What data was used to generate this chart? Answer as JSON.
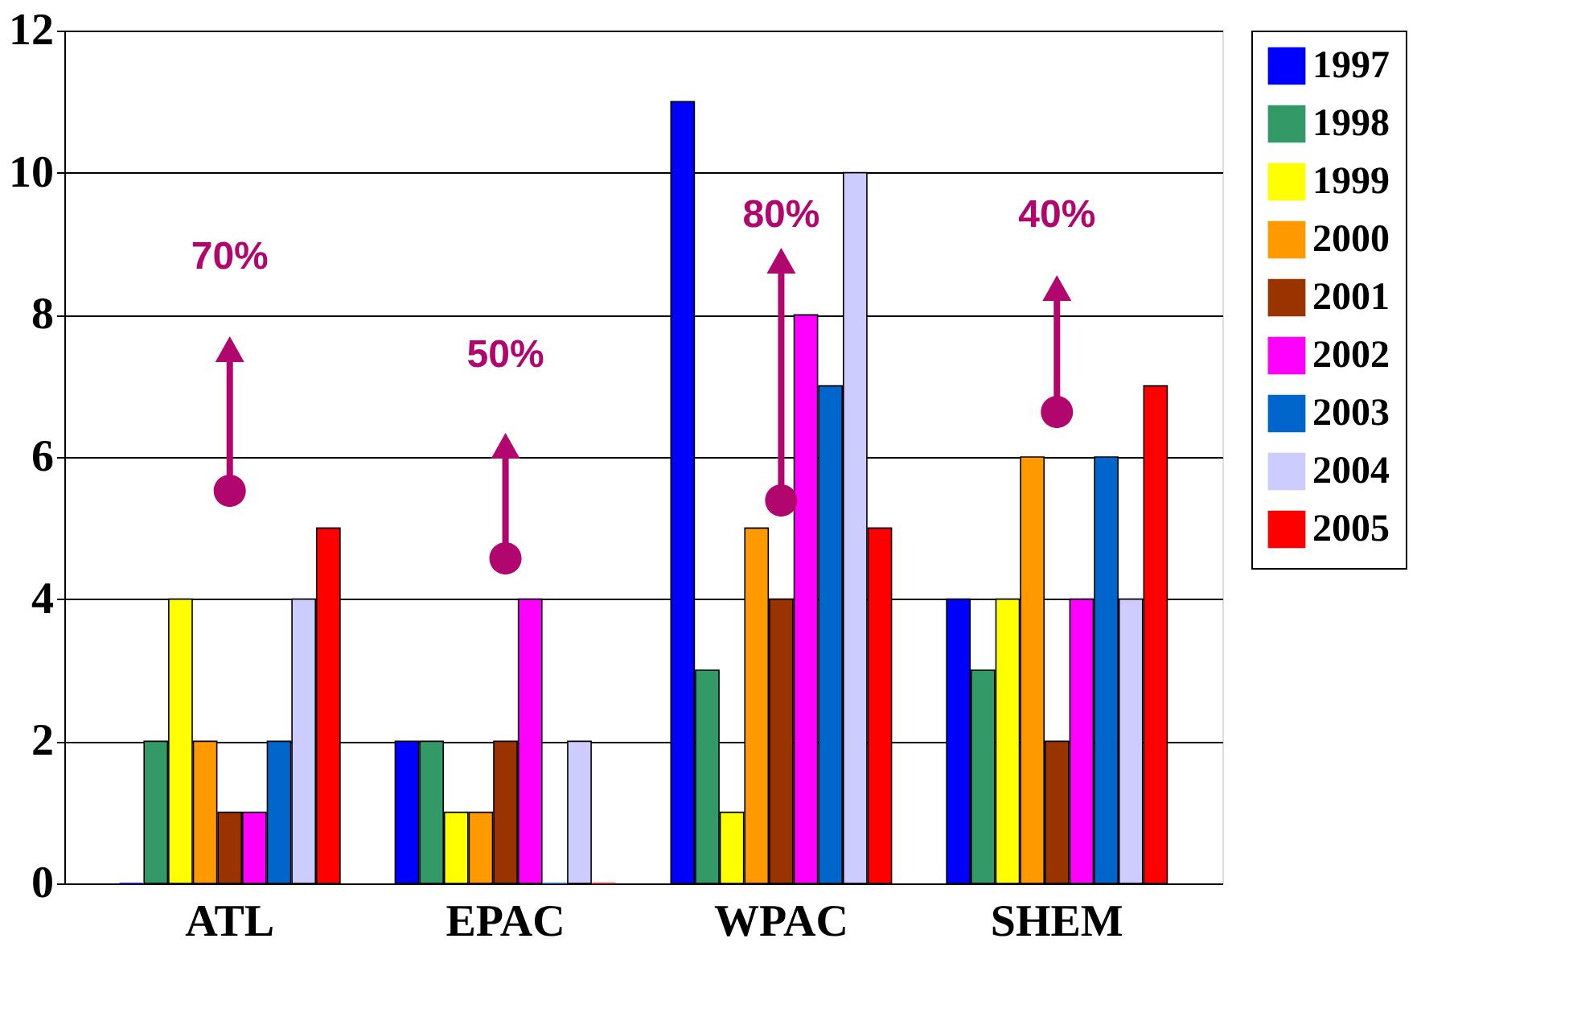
{
  "chart_data": {
    "type": "bar",
    "categories": [
      "ATL",
      "EPAC",
      "WPAC",
      "SHEM"
    ],
    "series": [
      {
        "name": "1997",
        "color": "#0000ff",
        "values": [
          0,
          2,
          11,
          4
        ]
      },
      {
        "name": "1998",
        "color": "#339966",
        "values": [
          2,
          2,
          3,
          3
        ]
      },
      {
        "name": "1999",
        "color": "#ffff00",
        "values": [
          4,
          1,
          1,
          4
        ]
      },
      {
        "name": "2000",
        "color": "#ff9900",
        "values": [
          2,
          1,
          5,
          6
        ]
      },
      {
        "name": "2001",
        "color": "#993300",
        "values": [
          1,
          2,
          4,
          2
        ]
      },
      {
        "name": "2002",
        "color": "#ff00ff",
        "values": [
          1,
          4,
          8,
          4
        ]
      },
      {
        "name": "2003",
        "color": "#0066cc",
        "values": [
          2,
          0,
          7,
          6
        ]
      },
      {
        "name": "2004",
        "color": "#ccccff",
        "values": [
          4,
          2,
          10,
          4
        ]
      },
      {
        "name": "2005",
        "color": "#ff0000",
        "values": [
          5,
          0,
          5,
          7
        ]
      }
    ],
    "ylim": [
      0,
      12
    ],
    "yticks": [
      0,
      2,
      4,
      6,
      8,
      10,
      12
    ],
    "grid": "y",
    "legend": "right",
    "annotations": [
      "70%",
      "50%",
      "80%",
      "40%"
    ]
  }
}
